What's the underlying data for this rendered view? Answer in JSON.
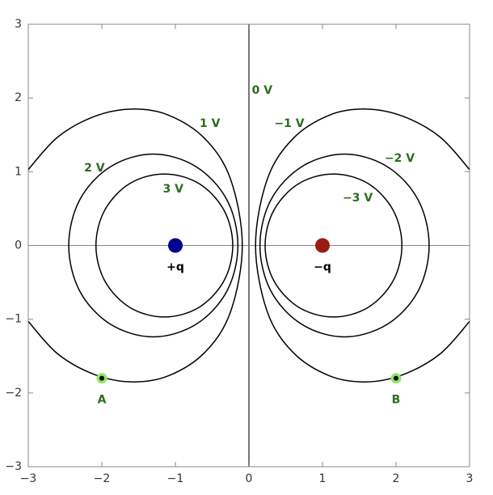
{
  "chart_data": {
    "type": "contour",
    "xlim": [
      -3,
      3
    ],
    "ylim": [
      -3,
      3
    ],
    "xticks": [
      {
        "value": -3,
        "label": "−3"
      },
      {
        "value": -2,
        "label": "−2"
      },
      {
        "value": -1,
        "label": "−1"
      },
      0,
      1,
      2,
      3
    ],
    "yticks": [
      {
        "value": -3,
        "label": "−3"
      },
      {
        "value": -2,
        "label": "−2"
      },
      {
        "value": -1,
        "label": "−1"
      },
      0,
      1,
      2,
      3
    ],
    "contours": [
      {
        "label": "0 V",
        "color": "#777777",
        "closed": false,
        "x": [
          0,
          0
        ],
        "y": [
          3,
          -3
        ]
      },
      {
        "label": "1 V",
        "color": "#000000",
        "closed": false,
        "x": [
          -3,
          -2.6,
          -2.1,
          -1.6,
          -1.1,
          -0.6,
          -0.25,
          -0.09,
          -0.25,
          -0.6,
          -1.1,
          -1.6,
          -2.1,
          -2.6,
          -3
        ],
        "y": [
          1.03,
          1.47,
          1.75,
          1.85,
          1.77,
          1.45,
          0.9,
          0,
          -0.9,
          -1.45,
          -1.77,
          -1.85,
          -1.75,
          -1.47,
          -1.03
        ]
      },
      {
        "label": "2 V",
        "color": "#000000",
        "closed": true,
        "x": [
          -0.15,
          -0.3,
          -0.72,
          -1.3,
          -1.88,
          -2.3,
          -2.45,
          -2.3,
          -1.88,
          -1.3,
          -0.72,
          -0.3
        ],
        "y": [
          0,
          0.62,
          1.07,
          1.24,
          1.07,
          0.62,
          0,
          -0.62,
          -1.07,
          -1.24,
          -1.07,
          -0.62
        ]
      },
      {
        "label": "3 V",
        "color": "#000000",
        "closed": true,
        "x": [
          -0.22,
          -0.34,
          -0.68,
          -1.15,
          -1.62,
          -1.96,
          -2.08,
          -1.96,
          -1.62,
          -1.15,
          -0.68,
          -0.34
        ],
        "y": [
          0,
          0.48,
          0.84,
          0.97,
          0.84,
          0.48,
          0,
          -0.48,
          -0.84,
          -0.97,
          -0.84,
          -0.48
        ]
      },
      {
        "label": "−1 V",
        "color": "#000000",
        "closed": false,
        "x": [
          3,
          2.6,
          2.1,
          1.6,
          1.1,
          0.6,
          0.25,
          0.09,
          0.25,
          0.6,
          1.1,
          1.6,
          2.1,
          2.6,
          3
        ],
        "y": [
          1.03,
          1.47,
          1.75,
          1.85,
          1.77,
          1.45,
          0.9,
          0,
          -0.9,
          -1.45,
          -1.77,
          -1.85,
          -1.75,
          -1.47,
          -1.03
        ]
      },
      {
        "label": "−2 V",
        "color": "#000000",
        "closed": true,
        "x": [
          0.15,
          0.3,
          0.72,
          1.3,
          1.88,
          2.3,
          2.45,
          2.3,
          1.88,
          1.3,
          0.72,
          0.3
        ],
        "y": [
          0,
          0.62,
          1.07,
          1.24,
          1.07,
          0.62,
          0,
          -0.62,
          -1.07,
          -1.24,
          -1.07,
          -0.62
        ]
      },
      {
        "label": "−3 V",
        "color": "#000000",
        "closed": true,
        "x": [
          0.22,
          0.34,
          0.68,
          1.15,
          1.62,
          1.96,
          2.08,
          1.96,
          1.62,
          1.15,
          0.68,
          0.34
        ],
        "y": [
          0,
          0.48,
          0.84,
          0.97,
          0.84,
          0.48,
          0,
          -0.48,
          -0.84,
          -0.97,
          -0.84,
          -0.48
        ]
      }
    ],
    "charges": [
      {
        "label": "+q",
        "x": -1,
        "y": 0,
        "color": "#00008f"
      },
      {
        "label": "−q",
        "x": 1,
        "y": 0,
        "color": "#9b1c14"
      }
    ],
    "points": [
      {
        "label": "A",
        "x": -2,
        "y": -1.8
      },
      {
        "label": "B",
        "x": 2,
        "y": -1.8
      }
    ]
  }
}
